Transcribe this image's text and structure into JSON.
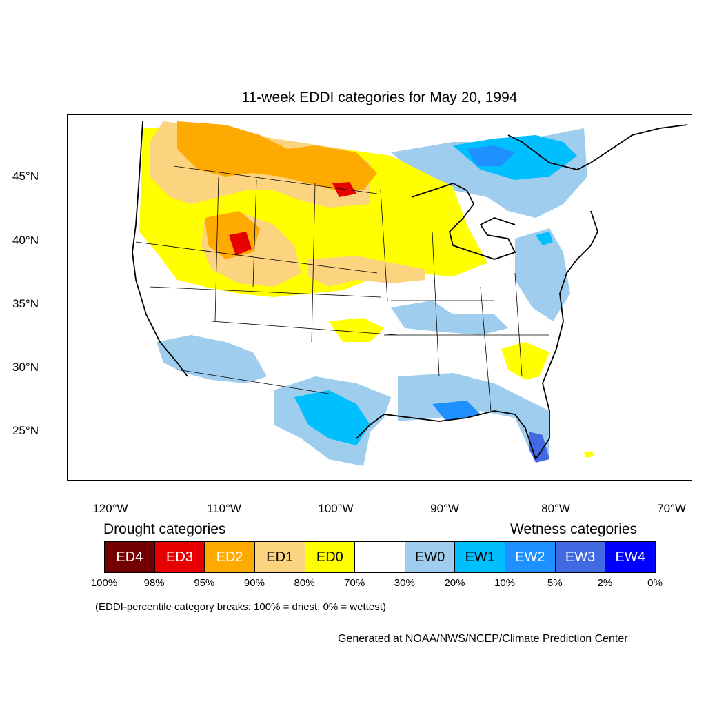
{
  "title": "11-week EDDI categories for May 20, 1994",
  "lat_ticks": [
    {
      "label": "45°N",
      "value": 45
    },
    {
      "label": "40°N",
      "value": 40
    },
    {
      "label": "35°N",
      "value": 35
    },
    {
      "label": "30°N",
      "value": 30
    },
    {
      "label": "25°N",
      "value": 25
    }
  ],
  "lon_ticks": [
    {
      "label": "120°W",
      "value": -120
    },
    {
      "label": "110°W",
      "value": -110
    },
    {
      "label": "100°W",
      "value": -100
    },
    {
      "label": "90°W",
      "value": -90
    },
    {
      "label": "80°W",
      "value": -80
    },
    {
      "label": "70°W",
      "value": -70
    }
  ],
  "legend": {
    "drought_heading": "Drought categories",
    "wetness_heading": "Wetness categories",
    "categories": [
      {
        "label": "ED4",
        "color": "#730000",
        "text_color": "#ffffff"
      },
      {
        "label": "ED3",
        "color": "#e60000",
        "text_color": "#ffffff"
      },
      {
        "label": "ED2",
        "color": "#ffaa00",
        "text_color": "#ffffff"
      },
      {
        "label": "ED1",
        "color": "#fcd37f",
        "text_color": "#000000"
      },
      {
        "label": "ED0",
        "color": "#ffff00",
        "text_color": "#000000"
      },
      {
        "label": "",
        "color": "#ffffff",
        "text_color": "#000000"
      },
      {
        "label": "EW0",
        "color": "#9ecdee",
        "text_color": "#000000"
      },
      {
        "label": "EW1",
        "color": "#00bfff",
        "text_color": "#000000"
      },
      {
        "label": "EW2",
        "color": "#1e90ff",
        "text_color": "#ffffff"
      },
      {
        "label": "EW3",
        "color": "#4169e1",
        "text_color": "#ffffff"
      },
      {
        "label": "EW4",
        "color": "#0000ff",
        "text_color": "#ffffff"
      }
    ],
    "breaks": [
      "100%",
      "98%",
      "95%",
      "90%",
      "80%",
      "70%",
      "30%",
      "20%",
      "10%",
      "5%",
      "2%",
      "0%"
    ]
  },
  "note": "(EDDI-percentile category breaks: 100% = driest; 0% = wettest)",
  "credit": "Generated at NOAA/NWS/NCEP/Climate Prediction Center"
}
